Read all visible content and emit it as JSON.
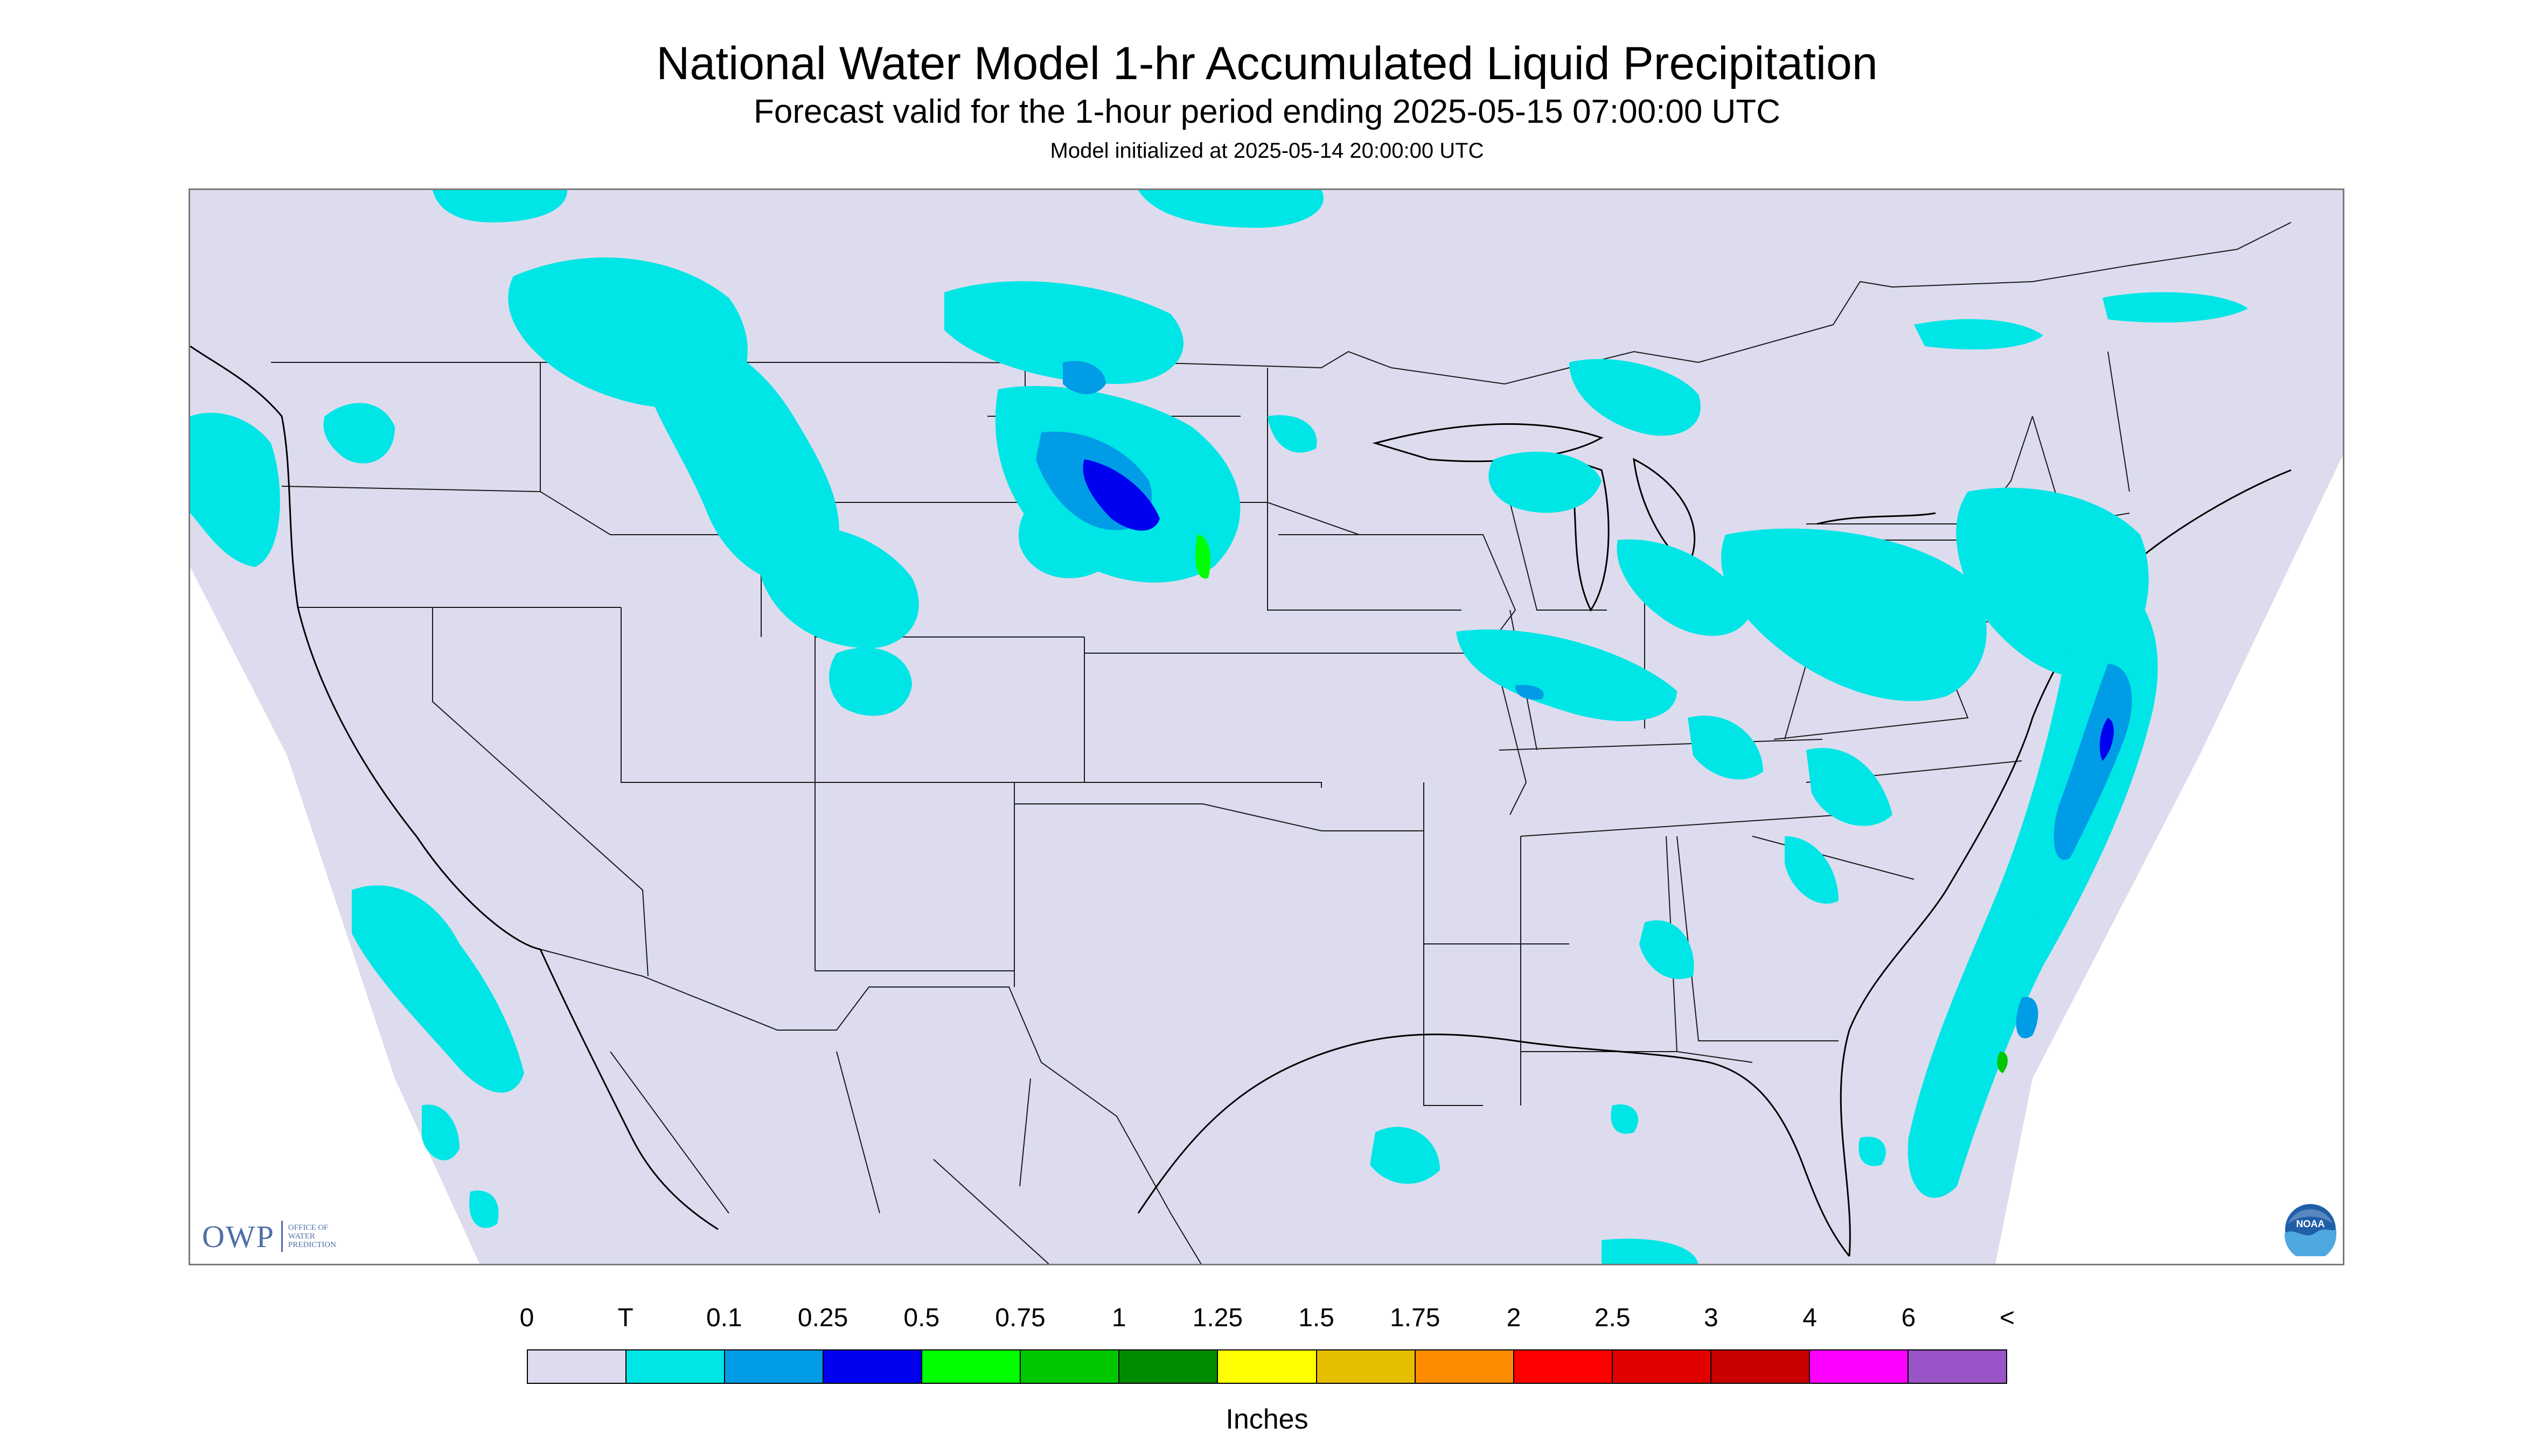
{
  "header": {
    "title": "National Water Model 1-hr Accumulated Liquid Precipitation",
    "subtitle": "Forecast valid for the 1-hour period ending 2025-05-15 07:00:00 UTC",
    "init": "Model initialized at 2025-05-14 20:00:00 UTC"
  },
  "map": {
    "background_color": "#dcdcee",
    "outside_color": "#ffffff",
    "boundary_color": "#000000",
    "precip_regions": [
      {
        "name": "Pacific Northwest",
        "category": "T"
      },
      {
        "name": "Northern Rockies and Montana",
        "category": "T"
      },
      {
        "name": "Western Dakotas",
        "category": "T"
      },
      {
        "name": "South Dakota / Nebraska border",
        "category": "0.5"
      },
      {
        "name": "Great Lakes",
        "category": "T"
      },
      {
        "name": "Ohio Valley",
        "category": "T"
      },
      {
        "name": "Mid-Atlantic and New England",
        "category": "T"
      },
      {
        "name": "Western Atlantic offshore",
        "category": "0.1"
      },
      {
        "name": "Eastern Pacific offshore",
        "category": "T"
      },
      {
        "name": "Gulf of Mexico",
        "category": "T"
      }
    ]
  },
  "logos": {
    "owp_mark": "OWP",
    "owp_text": "OFFICE OF\nWATER\nPREDICTION",
    "noaa_text": "NOAA"
  },
  "legend": {
    "labels": [
      "0",
      "T",
      "0.1",
      "0.25",
      "0.5",
      "0.75",
      "1",
      "1.25",
      "1.5",
      "1.75",
      "2",
      "2.5",
      "3",
      "4",
      "6",
      "<"
    ],
    "colors": [
      "#dcdcee",
      "#00e5e5",
      "#009ce6",
      "#0000f0",
      "#00ff00",
      "#00c800",
      "#008c00",
      "#ffff00",
      "#e6be00",
      "#ff8c00",
      "#ff0000",
      "#e10000",
      "#c80000",
      "#ff00ff",
      "#9955c8"
    ],
    "units": "Inches"
  }
}
